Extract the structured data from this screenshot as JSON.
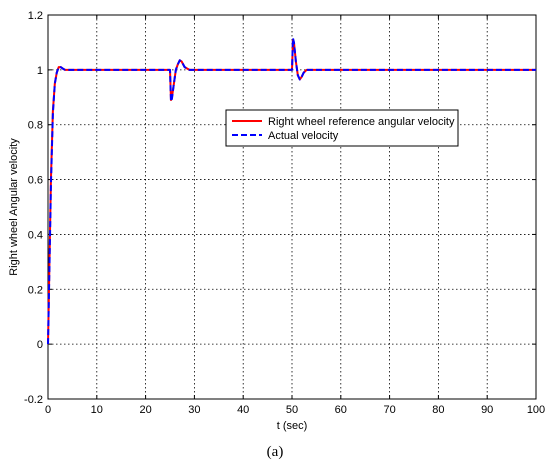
{
  "caption": "(a)",
  "chart_data": {
    "type": "line",
    "xlabel": "t (sec)",
    "ylabel": "Right wheel Angular  velocity",
    "xlim": [
      0,
      100
    ],
    "ylim": [
      -0.2,
      1.2
    ],
    "xticks": [
      0,
      10,
      20,
      30,
      40,
      50,
      60,
      70,
      80,
      90,
      100
    ],
    "yticks": [
      -0.2,
      0,
      0.2,
      0.4,
      0.6,
      0.8,
      1,
      1.2
    ],
    "xtick_labels": [
      "0",
      "10",
      "20",
      "30",
      "40",
      "50",
      "60",
      "70",
      "80",
      "90",
      "100"
    ],
    "ytick_labels": [
      "-0.2",
      "0",
      "0.2",
      "0.4",
      "0.6",
      "0.8",
      "1",
      "1.2"
    ],
    "grid": true,
    "legend_position": "upper-middle-right",
    "series": [
      {
        "name": "Right wheel reference  angular velocity",
        "color": "#ff0000",
        "style": "solid",
        "x": [
          0,
          0.3,
          0.6,
          1.0,
          1.4,
          1.8,
          2.2,
          2.6,
          3.0,
          3.5,
          4,
          10,
          20,
          25.0,
          25.2,
          25.4,
          25.8,
          26.2,
          26.6,
          27.0,
          27.4,
          28.0,
          29.0,
          30.0,
          31,
          40,
          50.0,
          50.2,
          50.4,
          50.8,
          51.2,
          51.6,
          52.0,
          52.4,
          53.0,
          54.0,
          55.0,
          56,
          70,
          80,
          90,
          100
        ],
        "y": [
          0,
          0.3,
          0.6,
          0.85,
          0.95,
          0.99,
          1.01,
          1.01,
          1.005,
          1.0,
          1.0,
          1.0,
          1.0,
          1.0,
          0.89,
          0.9,
          0.95,
          1.0,
          1.02,
          1.035,
          1.03,
          1.01,
          1.0,
          1.0,
          1.0,
          1.0,
          1.0,
          1.11,
          1.1,
          1.03,
          0.98,
          0.965,
          0.975,
          0.99,
          1.0,
          1.0,
          1.0,
          1.0,
          1.0,
          1.0,
          1.0,
          1.0
        ]
      },
      {
        "name": "Actual velocity",
        "color": "#0000ff",
        "style": "dashed",
        "x": [
          0,
          0.3,
          0.6,
          1.0,
          1.4,
          1.8,
          2.2,
          2.6,
          3.0,
          3.5,
          4,
          10,
          20,
          25.0,
          25.2,
          25.4,
          25.8,
          26.2,
          26.6,
          27.0,
          27.4,
          28.0,
          29.0,
          30.0,
          31,
          40,
          50.0,
          50.2,
          50.4,
          50.8,
          51.2,
          51.6,
          52.0,
          52.4,
          53.0,
          54.0,
          55.0,
          56,
          70,
          80,
          90,
          100
        ],
        "y": [
          0,
          0.28,
          0.58,
          0.84,
          0.95,
          0.99,
          1.01,
          1.01,
          1.005,
          1.0,
          1.0,
          1.0,
          1.0,
          1.0,
          0.885,
          0.895,
          0.95,
          1.0,
          1.02,
          1.035,
          1.03,
          1.01,
          1.0,
          1.0,
          1.0,
          1.0,
          1.0,
          1.115,
          1.1,
          1.03,
          0.98,
          0.965,
          0.975,
          0.99,
          1.0,
          1.0,
          1.0,
          1.0,
          1.0,
          1.0,
          1.0,
          1.0
        ]
      }
    ]
  }
}
